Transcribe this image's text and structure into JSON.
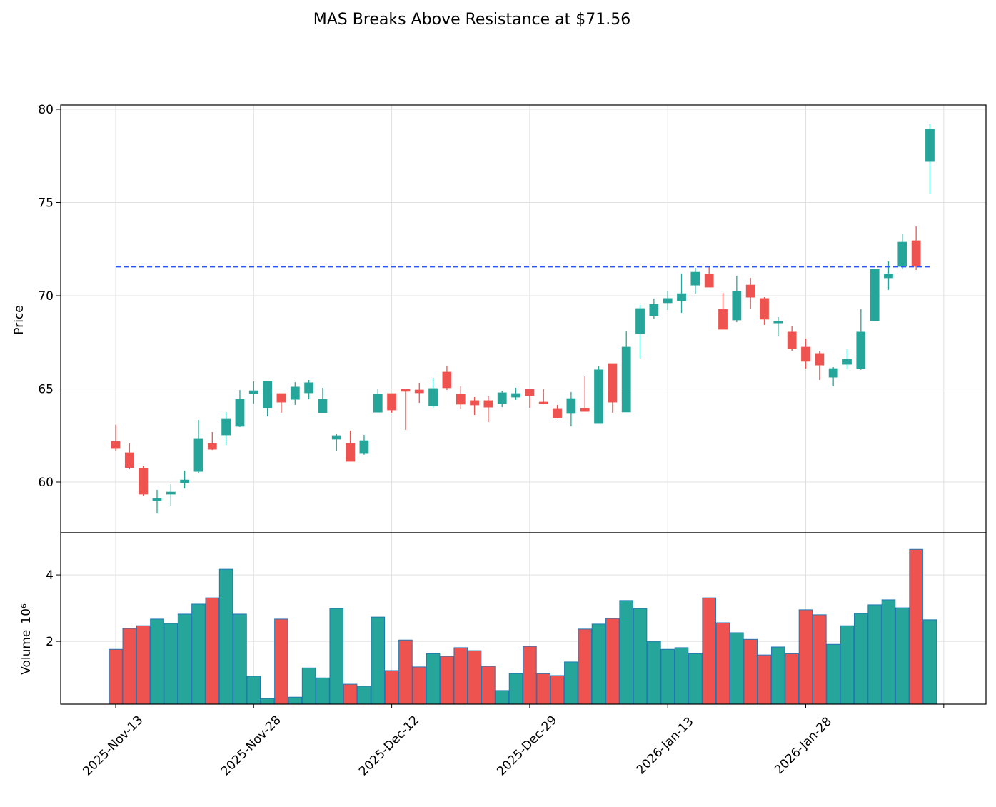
{
  "chart_data": {
    "type": "candlestick",
    "title": "MAS Breaks Above Resistance at $71.56",
    "ylabel": "Price",
    "volume_ylabel": "Volume",
    "volume_offset_label": "10⁶",
    "categories": [
      "2025-Nov-13",
      null,
      null,
      null,
      null,
      null,
      null,
      null,
      null,
      null,
      "2025-Nov-28",
      null,
      null,
      null,
      null,
      null,
      null,
      null,
      null,
      null,
      "2025-Dec-12",
      null,
      null,
      null,
      null,
      null,
      null,
      null,
      null,
      null,
      "2025-Dec-29",
      null,
      null,
      null,
      null,
      null,
      null,
      null,
      null,
      null,
      "2026-Jan-13",
      null,
      null,
      null,
      null,
      null,
      null,
      null,
      null,
      null,
      "2026-Jan-28",
      null,
      null,
      null,
      null,
      null,
      null,
      null,
      null,
      null
    ],
    "open": [
      62.18,
      61.57,
      60.73,
      59.0,
      59.35,
      59.96,
      60.57,
      62.07,
      62.53,
      62.99,
      64.75,
      63.98,
      64.75,
      64.44,
      64.79,
      63.72,
      62.3,
      62.07,
      61.53,
      63.75,
      64.75,
      64.98,
      64.94,
      64.1,
      65.9,
      64.71,
      64.37,
      64.37,
      64.21,
      64.56,
      64.98,
      64.29,
      63.91,
      63.68,
      63.95,
      63.14,
      66.36,
      63.76,
      67.97,
      68.93,
      69.62,
      69.73,
      70.57,
      71.15,
      69.27,
      68.7,
      70.57,
      69.85,
      68.54,
      68.05,
      67.24,
      66.9,
      65.63,
      66.32,
      66.09,
      68.66,
      70.96,
      71.57,
      72.95,
      77.2
    ],
    "high": [
      63.07,
      62.07,
      60.88,
      59.58,
      59.88,
      60.61,
      63.33,
      62.68,
      63.75,
      64.94,
      65.4,
      65.4,
      64.75,
      65.36,
      65.48,
      65.06,
      62.57,
      62.76,
      62.53,
      65.02,
      64.75,
      64.98,
      65.33,
      65.59,
      66.25,
      65.13,
      64.56,
      64.6,
      64.9,
      65.06,
      64.98,
      64.98,
      64.14,
      64.83,
      65.67,
      66.21,
      66.36,
      68.08,
      69.5,
      69.85,
      70.23,
      71.19,
      71.49,
      71.57,
      70.15,
      71.07,
      70.96,
      69.92,
      68.85,
      68.39,
      67.7,
      67.01,
      66.17,
      67.13,
      69.27,
      71.42,
      71.84,
      73.3,
      73.72,
      79.2
    ],
    "low": [
      61.65,
      60.69,
      59.27,
      58.31,
      58.74,
      59.65,
      60.46,
      61.72,
      61.99,
      62.95,
      64.21,
      63.52,
      63.72,
      64.14,
      64.44,
      63.72,
      61.65,
      61.11,
      61.46,
      63.75,
      63.72,
      62.8,
      64.25,
      63.98,
      64.94,
      63.91,
      63.6,
      63.22,
      64.02,
      64.41,
      63.98,
      64.18,
      63.41,
      62.99,
      63.79,
      63.14,
      63.72,
      63.76,
      66.63,
      68.77,
      69.23,
      69.08,
      70.11,
      70.46,
      68.2,
      68.58,
      69.31,
      68.43,
      67.82,
      67.05,
      66.09,
      65.48,
      65.13,
      66.05,
      66.02,
      68.66,
      70.31,
      71.42,
      71.38,
      75.44
    ],
    "close": [
      61.8,
      60.77,
      59.35,
      59.12,
      59.46,
      60.11,
      62.3,
      61.76,
      63.37,
      64.44,
      64.9,
      65.4,
      64.29,
      65.1,
      65.33,
      64.44,
      62.49,
      61.11,
      62.22,
      64.71,
      63.87,
      64.87,
      64.79,
      65.02,
      65.06,
      64.18,
      64.14,
      64.02,
      64.79,
      64.75,
      64.64,
      64.21,
      63.45,
      64.48,
      63.79,
      66.02,
      64.29,
      67.24,
      69.31,
      69.54,
      69.85,
      70.11,
      71.26,
      70.46,
      68.2,
      70.23,
      69.92,
      68.74,
      68.62,
      67.16,
      66.48,
      66.28,
      66.09,
      66.59,
      68.05,
      71.42,
      71.15,
      72.87,
      71.57,
      78.93
    ],
    "volume": [
      1.76,
      2.39,
      2.47,
      2.67,
      2.54,
      2.82,
      3.12,
      3.31,
      4.17,
      2.82,
      0.95,
      0.28,
      2.67,
      0.32,
      1.2,
      0.9,
      2.99,
      0.71,
      0.65,
      2.73,
      1.12,
      2.04,
      1.23,
      1.63,
      1.55,
      1.81,
      1.72,
      1.25,
      0.52,
      1.03,
      1.85,
      1.03,
      0.97,
      1.38,
      2.37,
      2.52,
      2.69,
      3.23,
      2.99,
      2.0,
      1.76,
      1.81,
      1.63,
      3.31,
      2.56,
      2.26,
      2.06,
      1.59,
      1.83,
      1.63,
      2.95,
      2.8,
      1.91,
      2.47,
      2.84,
      3.1,
      3.25,
      3.01,
      4.77,
      2.65
    ],
    "up_color": "#26a69a",
    "down_color": "#ef5350",
    "volume_edge_color": "#1f77b4",
    "resistance": {
      "value": 71.56,
      "color": "#2a56f5"
    },
    "ylim": [
      57.28,
      80.23
    ],
    "yticks": [
      60,
      65,
      70,
      75,
      80
    ],
    "volume_ylim": [
      0.11,
      5.27
    ],
    "volume_yticks": [
      2,
      4
    ],
    "grid": true
  }
}
